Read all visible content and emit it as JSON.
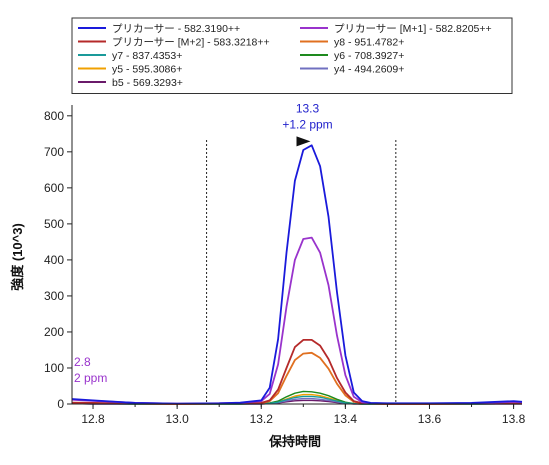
{
  "chart_data": {
    "type": "line",
    "xlabel": "保持時間",
    "ylabel": "強度 (10^3)",
    "xlim": [
      12.75,
      13.82
    ],
    "ylim": [
      0,
      830
    ],
    "xticks": [
      12.8,
      13.0,
      13.2,
      13.4,
      13.6,
      13.8
    ],
    "xtick_labels": [
      "12.8",
      "13.0",
      "13.2",
      "13.4",
      "13.6",
      "13.8"
    ],
    "yticks": [
      0,
      100,
      200,
      300,
      400,
      500,
      600,
      700,
      800
    ],
    "ytick_labels": [
      "0",
      "100",
      "200",
      "300",
      "400",
      "500",
      "600",
      "700",
      "800"
    ],
    "integration_bounds": [
      13.07,
      13.52
    ],
    "grid": false,
    "legend_position": "top",
    "legend_columns": 2,
    "x": [
      12.75,
      12.8,
      12.9,
      13.0,
      13.1,
      13.15,
      13.2,
      13.22,
      13.24,
      13.26,
      13.28,
      13.3,
      13.32,
      13.34,
      13.36,
      13.38,
      13.4,
      13.42,
      13.44,
      13.46,
      13.5,
      13.6,
      13.7,
      13.8,
      13.82
    ],
    "series": [
      {
        "name": "プリカーサー - 582.3190++",
        "color": "#1a1adb",
        "values": [
          14,
          10,
          3,
          1,
          2,
          4,
          10,
          45,
          180,
          420,
          620,
          705,
          718,
          660,
          520,
          310,
          135,
          32,
          8,
          3,
          2,
          2,
          3,
          8,
          6
        ]
      },
      {
        "name": "プリカーサー [M+1] - 582.8205++",
        "color": "#9933cc",
        "values": [
          12,
          9,
          3,
          1,
          2,
          3,
          8,
          28,
          110,
          270,
          400,
          458,
          462,
          420,
          330,
          190,
          80,
          20,
          5,
          2,
          1,
          1,
          2,
          6,
          5
        ]
      },
      {
        "name": "プリカーサー [M+2] - 583.3218++",
        "color": "#b52a2a",
        "values": [
          4,
          3,
          1,
          0,
          1,
          1,
          3,
          10,
          40,
          100,
          158,
          178,
          178,
          162,
          125,
          72,
          32,
          8,
          2,
          1,
          0,
          0,
          1,
          2,
          2
        ]
      },
      {
        "name": "y8 - 951.4782+",
        "color": "#e07020",
        "values": [
          3,
          2,
          1,
          0,
          1,
          1,
          2,
          8,
          30,
          78,
          122,
          140,
          142,
          128,
          98,
          56,
          24,
          6,
          2,
          1,
          0,
          0,
          1,
          2,
          2
        ]
      },
      {
        "name": "y7 - 837.4353+",
        "color": "#1a9a9a",
        "values": [
          1,
          1,
          0,
          0,
          0,
          0,
          1,
          2,
          5,
          12,
          18,
          21,
          21,
          19,
          14,
          8,
          3,
          1,
          0,
          0,
          0,
          0,
          0,
          1,
          1
        ]
      },
      {
        "name": "y6 - 708.3927+",
        "color": "#1e8a1e",
        "values": [
          1,
          1,
          0,
          0,
          0,
          0,
          1,
          3,
          8,
          20,
          30,
          35,
          34,
          30,
          23,
          13,
          5,
          1,
          0,
          0,
          0,
          0,
          0,
          1,
          1
        ]
      },
      {
        "name": "y5 - 595.3086+",
        "color": "#f0a000",
        "values": [
          1,
          1,
          0,
          0,
          0,
          0,
          1,
          2,
          6,
          14,
          22,
          26,
          26,
          23,
          17,
          10,
          4,
          1,
          0,
          0,
          0,
          0,
          0,
          1,
          1
        ]
      },
      {
        "name": "y4 - 494.2609+",
        "color": "#7070c0",
        "values": [
          1,
          0,
          0,
          0,
          0,
          0,
          0,
          1,
          4,
          9,
          13,
          15,
          15,
          13,
          10,
          6,
          2,
          1,
          0,
          0,
          0,
          0,
          0,
          1,
          1
        ]
      },
      {
        "name": "b5 - 569.3293+",
        "color": "#6a1a6a",
        "values": [
          1,
          0,
          0,
          0,
          0,
          0,
          0,
          1,
          3,
          6,
          9,
          10,
          10,
          9,
          7,
          4,
          2,
          0,
          0,
          0,
          0,
          0,
          0,
          0,
          0
        ]
      }
    ],
    "annotations": [
      {
        "line1": "13.3",
        "line2": "+1.2 ppm",
        "x": 13.31,
        "y": 718,
        "color": "#2222cc",
        "marker": "triangle"
      },
      {
        "line1": "2.8",
        "line2": "2 ppm",
        "x": 12.75,
        "y": 14,
        "color": "#9933cc"
      }
    ]
  }
}
